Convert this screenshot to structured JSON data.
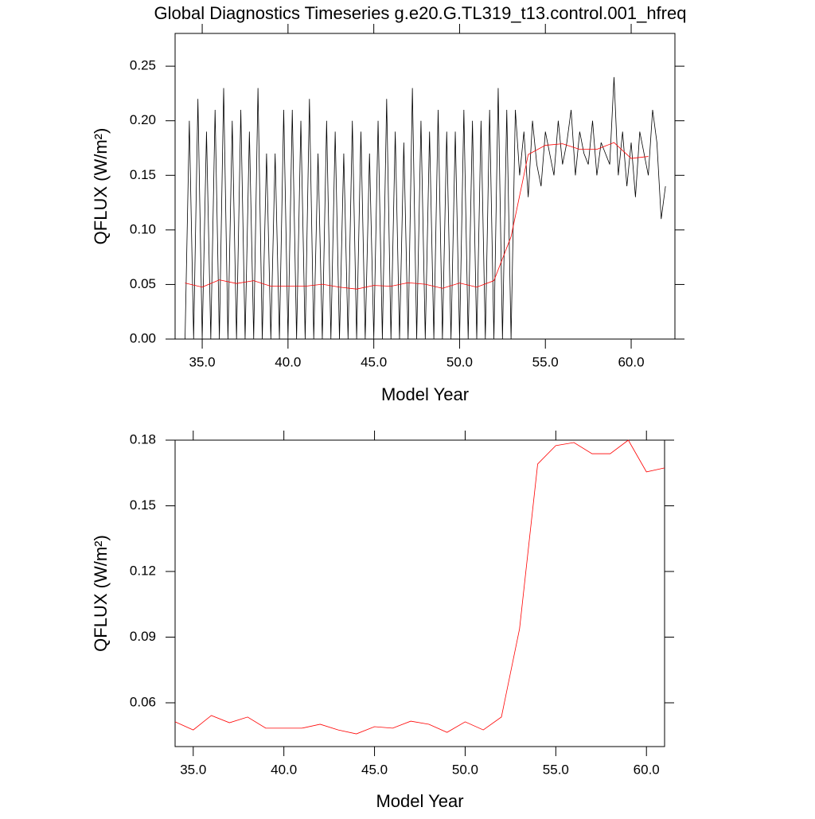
{
  "chart_data": [
    {
      "type": "line",
      "title": "Global Diagnostics Timeseries g.e20.G.TL319_t13.control.001_hfreq",
      "xlabel": "Model Year",
      "ylabel": "QFLUX (W/m²)",
      "xlim": [
        33.42,
        62.55
      ],
      "ylim": [
        0,
        0.28
      ],
      "xticks": [
        {
          "value": 35,
          "label": "35.0"
        },
        {
          "value": 40,
          "label": "40.0"
        },
        {
          "value": 45,
          "label": "45.0"
        },
        {
          "value": 50,
          "label": "50.0"
        },
        {
          "value": 55,
          "label": "55.0"
        },
        {
          "value": 60,
          "label": "60.0"
        }
      ],
      "yticks": [
        {
          "value": 0,
          "label": "0.00"
        },
        0.05,
        {
          "value": 0.1,
          "label": "0.10"
        },
        0.15,
        {
          "value": 0.2,
          "label": "0.20"
        },
        0.25
      ],
      "series": [
        {
          "color": "#000000",
          "x": [
            34,
            34.25,
            34.5,
            34.75,
            35,
            35.25,
            35.5,
            35.75,
            36,
            36.25,
            36.5,
            36.75,
            37,
            37.25,
            37.5,
            37.75,
            38,
            38.25,
            38.5,
            38.75,
            39,
            39.25,
            39.5,
            39.75,
            40,
            40.25,
            40.5,
            40.75,
            41,
            41.25,
            41.5,
            41.75,
            42,
            42.25,
            42.5,
            42.75,
            43,
            43.25,
            43.5,
            43.75,
            44,
            44.25,
            44.5,
            44.75,
            45,
            45.25,
            45.5,
            45.75,
            46,
            46.25,
            46.5,
            46.75,
            47,
            47.25,
            47.5,
            47.75,
            48,
            48.25,
            48.5,
            48.75,
            49,
            49.25,
            49.5,
            49.75,
            50,
            50.25,
            50.5,
            50.75,
            51,
            51.25,
            51.5,
            51.75,
            52,
            52.25,
            52.5,
            52.75,
            53,
            53.25,
            53.5,
            53.75,
            54,
            54.25,
            54.5,
            54.75,
            55,
            55.25,
            55.5,
            55.75,
            56,
            56.25,
            56.5,
            56.75,
            57,
            57.25,
            57.5,
            57.75,
            58,
            58.25,
            58.5,
            58.75,
            59,
            59.25,
            59.5,
            59.75,
            60,
            60.25,
            60.5,
            60.75,
            61,
            61.25,
            61.5,
            61.75,
            62
          ],
          "values": [
            0,
            0.2,
            0,
            0.22,
            0,
            0.19,
            0,
            0.21,
            0,
            0.23,
            0,
            0.2,
            0,
            0.21,
            0,
            0.19,
            0,
            0.23,
            0,
            0.17,
            0,
            0.17,
            0,
            0.21,
            0,
            0.21,
            0,
            0.2,
            0,
            0.22,
            0,
            0.17,
            0,
            0.2,
            0,
            0.19,
            0,
            0.17,
            0,
            0.2,
            0,
            0.19,
            0,
            0.17,
            0,
            0.2,
            0,
            0.22,
            0,
            0.19,
            0,
            0.18,
            0,
            0.23,
            0,
            0.2,
            0,
            0.19,
            0,
            0.21,
            0,
            0.19,
            0,
            0.19,
            0,
            0.21,
            0,
            0.2,
            0,
            0.2,
            0,
            0.21,
            0,
            0.23,
            0,
            0.21,
            0,
            0.21,
            0.15,
            0.19,
            0.13,
            0.2,
            0.16,
            0.14,
            0.19,
            0.17,
            0.15,
            0.2,
            0.16,
            0.18,
            0.21,
            0.15,
            0.19,
            0.17,
            0.16,
            0.2,
            0.15,
            0.18,
            0.17,
            0.16,
            0.24,
            0.15,
            0.19,
            0.14,
            0.18,
            0.13,
            0.19,
            0.17,
            0.15,
            0.21,
            0.18,
            0.11,
            0.14
          ]
        },
        {
          "color": "#ff0000",
          "x": [
            34,
            35,
            36,
            37,
            38,
            39,
            40,
            41,
            42,
            43,
            44,
            45,
            46,
            47,
            48,
            49,
            50,
            51,
            52,
            53,
            54,
            55,
            56,
            57,
            58,
            59,
            60,
            61
          ],
          "values": [
            0.0513,
            0.0476,
            0.0542,
            0.0509,
            0.0535,
            0.0484,
            0.0484,
            0.0484,
            0.0502,
            0.0476,
            0.0458,
            0.0491,
            0.0484,
            0.0516,
            0.0502,
            0.0465,
            0.0513,
            0.0476,
            0.0535,
            0.0938,
            0.1691,
            0.1775,
            0.1789,
            0.1738,
            0.1738,
            0.18,
            0.1655,
            0.1673
          ]
        }
      ]
    },
    {
      "type": "line",
      "xlabel": "Model Year",
      "ylabel": "QFLUX (W/m²)",
      "xlim": [
        34,
        61
      ],
      "ylim": [
        0.04,
        0.18
      ],
      "xticks": [
        {
          "value": 35,
          "label": "35.0"
        },
        {
          "value": 40,
          "label": "40.0"
        },
        {
          "value": 45,
          "label": "45.0"
        },
        {
          "value": 50,
          "label": "50.0"
        },
        {
          "value": 55,
          "label": "55.0"
        },
        {
          "value": 60,
          "label": "60.0"
        }
      ],
      "yticks": [
        0.06,
        0.09,
        0.12,
        0.15,
        0.18
      ],
      "series": [
        {
          "color": "#ff0000",
          "x": [
            34,
            35,
            36,
            37,
            38,
            39,
            40,
            41,
            42,
            43,
            44,
            45,
            46,
            47,
            48,
            49,
            50,
            51,
            52,
            53,
            54,
            55,
            56,
            57,
            58,
            59,
            60,
            61
          ],
          "values": [
            0.0513,
            0.0476,
            0.0542,
            0.0509,
            0.0535,
            0.0484,
            0.0484,
            0.0484,
            0.0502,
            0.0476,
            0.0458,
            0.0491,
            0.0484,
            0.0516,
            0.0502,
            0.0465,
            0.0513,
            0.0476,
            0.0535,
            0.0938,
            0.1691,
            0.1775,
            0.1789,
            0.1738,
            0.1738,
            0.18,
            0.1655,
            0.1673
          ]
        }
      ]
    }
  ]
}
